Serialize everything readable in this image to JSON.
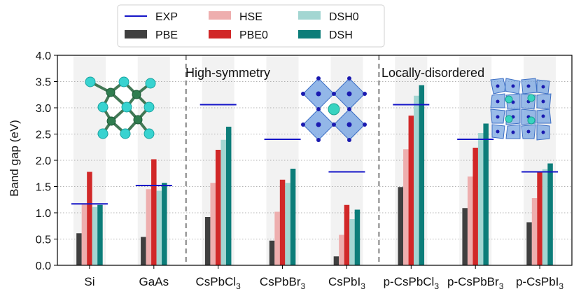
{
  "colors": {
    "EXP": "#1515c8",
    "PBE": "#3f3f3f",
    "HSE": "#eeaeae",
    "PBE0": "#d12828",
    "DSH0": "#a3d6d2",
    "DSH": "#0c7d79",
    "band_shade": "#f2f2f2",
    "grid": "#9a9a9a",
    "divider": "#808080"
  },
  "legend": {
    "placement": "above plot, top-left",
    "items": [
      {
        "key": "EXP",
        "label": "EXP",
        "kind": "line"
      },
      {
        "key": "HSE",
        "label": "HSE",
        "kind": "patch"
      },
      {
        "key": "DSH0",
        "label": "DSH0",
        "kind": "patch"
      },
      {
        "key": "PBE",
        "label": "PBE",
        "kind": "patch"
      },
      {
        "key": "PBE0",
        "label": "PBE0",
        "kind": "patch"
      },
      {
        "key": "DSH",
        "label": "DSH",
        "kind": "patch"
      }
    ]
  },
  "annotations": {
    "high_symmetry": "High-symmetry",
    "locally_disordered": "Locally-disordered"
  },
  "insets": [
    {
      "icon": "zincblende-structure-icon"
    },
    {
      "icon": "perovskite-octahedra-icon"
    },
    {
      "icon": "disordered-perovskite-icon"
    }
  ],
  "chart_data": {
    "type": "bar",
    "ylabel": "Band gap (eV)",
    "ylim": [
      0.0,
      4.0
    ],
    "yticks": [
      "0.0",
      "0.5",
      "1.0",
      "1.5",
      "2.0",
      "2.5",
      "3.0",
      "3.5",
      "4.0"
    ],
    "grid": "horizontal dotted",
    "categories": [
      {
        "base": "Si",
        "sub": "",
        "tail": ""
      },
      {
        "base": "GaAs",
        "sub": "",
        "tail": ""
      },
      {
        "base": "CsPbCl",
        "sub": "3",
        "tail": ""
      },
      {
        "base": "CsPbBr",
        "sub": "3",
        "tail": ""
      },
      {
        "base": "CsPbI",
        "sub": "3",
        "tail": ""
      },
      {
        "base": "p-CsPbCl",
        "sub": "3",
        "tail": ""
      },
      {
        "base": "p-CsPbBr",
        "sub": "3",
        "tail": ""
      },
      {
        "base": "p-CsPbI",
        "sub": "3",
        "tail": ""
      }
    ],
    "series": [
      {
        "name": "PBE",
        "values": [
          0.61,
          0.54,
          0.92,
          0.47,
          0.17,
          1.49,
          1.09,
          0.82
        ]
      },
      {
        "name": "HSE",
        "values": [
          1.17,
          1.45,
          1.57,
          1.02,
          0.58,
          2.21,
          1.69,
          1.28
        ]
      },
      {
        "name": "PBE0",
        "values": [
          1.78,
          2.02,
          2.2,
          1.63,
          1.15,
          2.85,
          2.24,
          1.78
        ]
      },
      {
        "name": "DSH0",
        "values": [
          1.11,
          1.42,
          2.39,
          1.57,
          0.88,
          3.23,
          2.52,
          1.83
        ]
      },
      {
        "name": "DSH",
        "values": [
          1.15,
          1.57,
          2.64,
          1.84,
          1.06,
          3.43,
          2.7,
          1.94
        ]
      }
    ],
    "exp": {
      "name": "EXP",
      "values": [
        1.17,
        1.52,
        3.06,
        2.4,
        1.78,
        3.06,
        2.4,
        1.78
      ]
    },
    "dividers_after_category_index": [
      1,
      4
    ]
  }
}
